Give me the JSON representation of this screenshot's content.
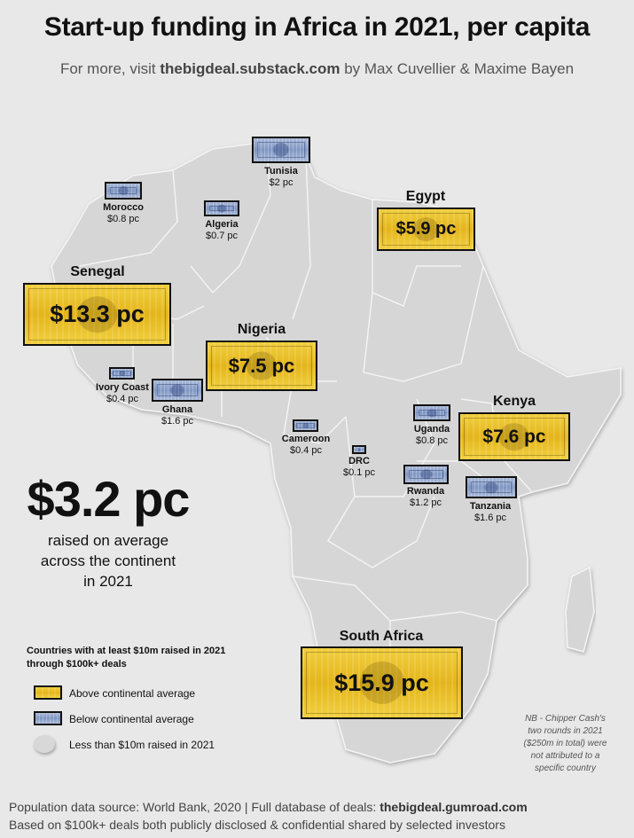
{
  "header": {
    "title": "Start-up funding in Africa in 2021, per capita",
    "subtitle_prefix": "For more, visit ",
    "subtitle_link": "thebigdeal.substack.com",
    "subtitle_suffix": " by Max Cuvellier & Maxime Bayen"
  },
  "colors": {
    "background": "#e8e8e8",
    "map_land": "#d6d6d6",
    "borders": "#f4f4f4",
    "above_average": "#e8bd22",
    "below_average": "#8ea3cc"
  },
  "countries": [
    {
      "name": "Tunisia",
      "value": "$2 pc",
      "per_capita": 2.0,
      "category": "below"
    },
    {
      "name": "Morocco",
      "value": "$0.8 pc",
      "per_capita": 0.8,
      "category": "below"
    },
    {
      "name": "Algeria",
      "value": "$0.7 pc",
      "per_capita": 0.7,
      "category": "below"
    },
    {
      "name": "Egypt",
      "value": "$5.9 pc",
      "per_capita": 5.9,
      "category": "above"
    },
    {
      "name": "Senegal",
      "value": "$13.3 pc",
      "per_capita": 13.3,
      "category": "above"
    },
    {
      "name": "Nigeria",
      "value": "$7.5 pc",
      "per_capita": 7.5,
      "category": "above"
    },
    {
      "name": "Ivory Coast",
      "value": "$0.4 pc",
      "per_capita": 0.4,
      "category": "below"
    },
    {
      "name": "Ghana",
      "value": "$1.6 pc",
      "per_capita": 1.6,
      "category": "below"
    },
    {
      "name": "Kenya",
      "value": "$7.6 pc",
      "per_capita": 7.6,
      "category": "above"
    },
    {
      "name": "Uganda",
      "value": "$0.8 pc",
      "per_capita": 0.8,
      "category": "below"
    },
    {
      "name": "Cameroon",
      "value": "$0.4 pc",
      "per_capita": 0.4,
      "category": "below"
    },
    {
      "name": "DRC",
      "value": "$0.1 pc",
      "per_capita": 0.1,
      "category": "below"
    },
    {
      "name": "Rwanda",
      "value": "$1.2 pc",
      "per_capita": 1.2,
      "category": "below"
    },
    {
      "name": "Tanzania",
      "value": "$1.6 pc",
      "per_capita": 1.6,
      "category": "below"
    },
    {
      "name": "South Africa",
      "value": "$15.9 pc",
      "per_capita": 15.9,
      "category": "above"
    }
  ],
  "average": {
    "value": "$3.2 pc",
    "line1": "raised on average",
    "line2": "across the continent",
    "line3": "in 2021"
  },
  "legend": {
    "title_line1": "Countries with at least $10m raised in 2021",
    "title_line2": "through $100k+ deals",
    "above": "Above continental average",
    "below": "Below continental average",
    "less": "Less than $10m raised in 2021"
  },
  "note": {
    "line1": "NB - Chipper Cash's",
    "line2": "two rounds in 2021",
    "line3": "($250m in total) were",
    "line4": "not attributed to a",
    "line5": "specific country"
  },
  "footer": {
    "line1_prefix": "Population data source: World Bank, 2020 | Full database of deals: ",
    "line1_link": "thebigdeal.gumroad.com",
    "line2": "Based on $100k+ deals both publicly disclosed & confidential shared by selected investors"
  }
}
